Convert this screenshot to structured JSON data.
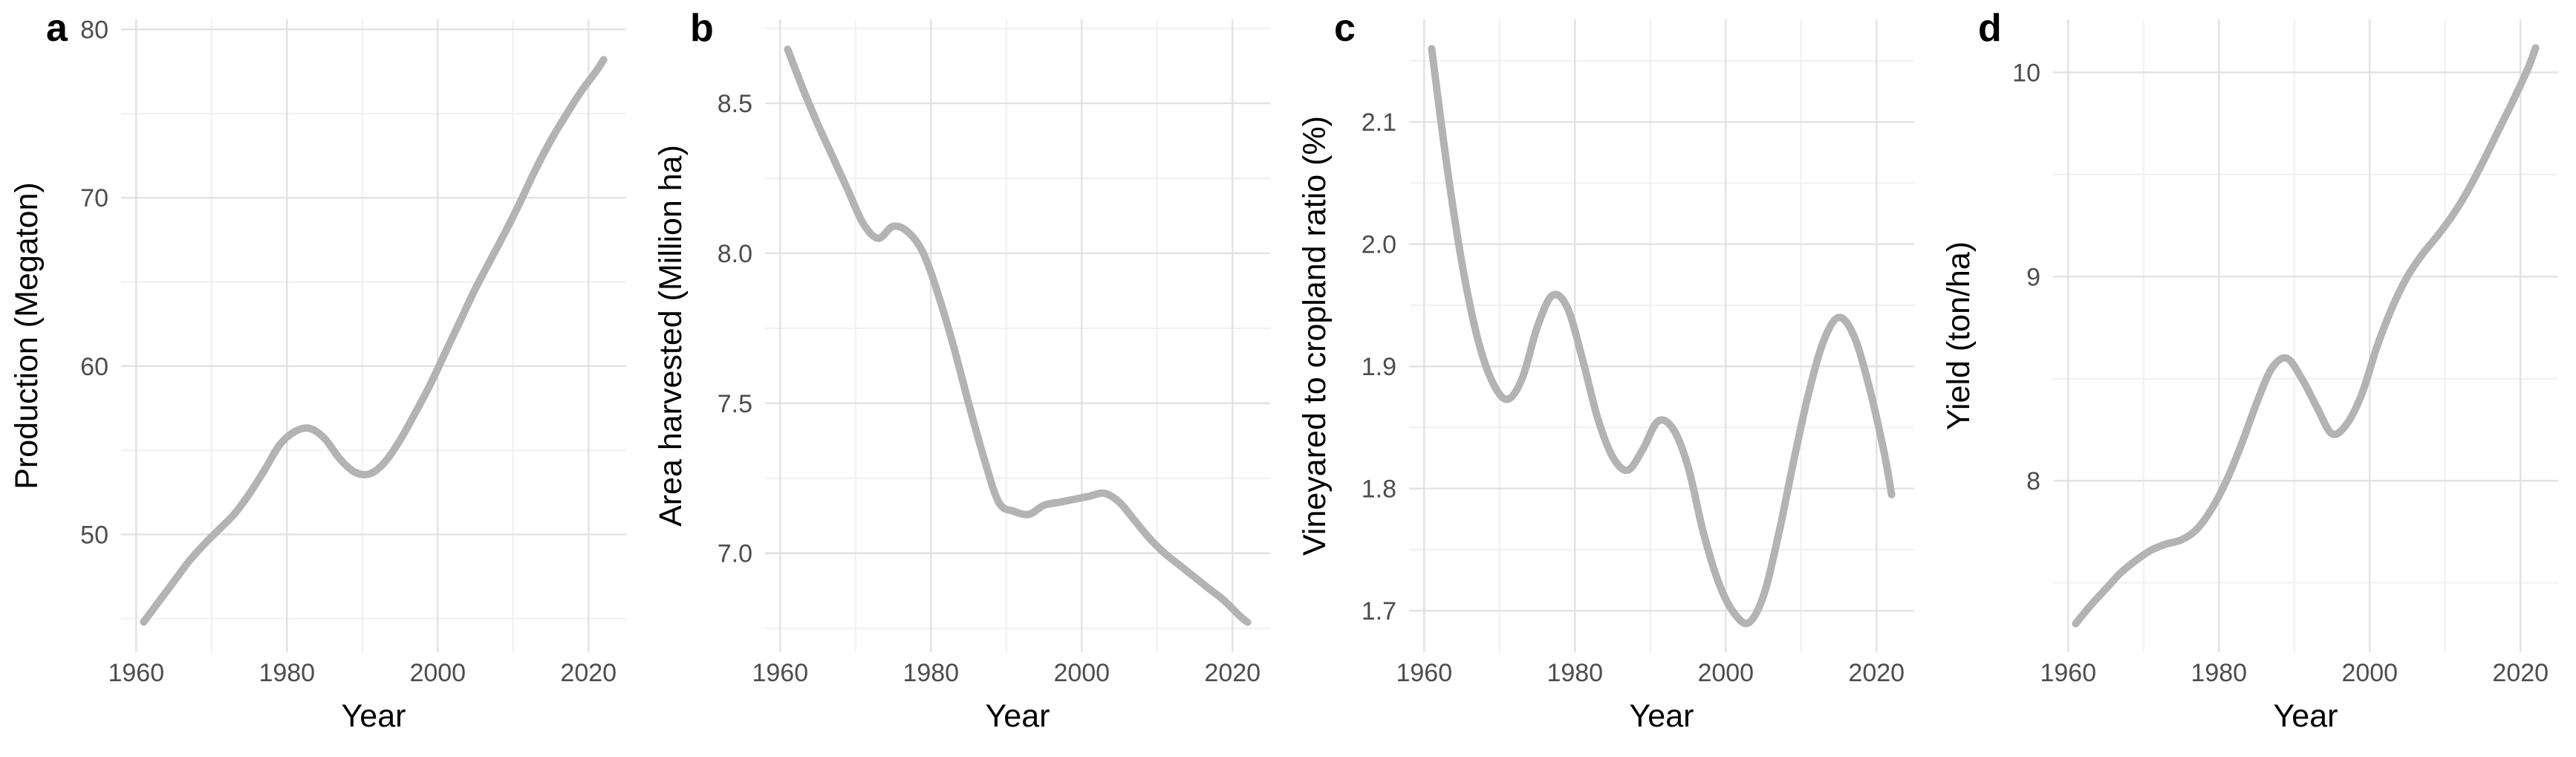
{
  "figure": {
    "description": "Four-panel time-series figure of smoothed trends versus Year",
    "panel_count": 4
  },
  "styles": {
    "background_color": "#ffffff",
    "line_color": "#b3b3b3",
    "grid_major_color": "#e2e2e2",
    "grid_minor_color": "#f0f0f0",
    "tick_label_color": "#4d4d4d",
    "axis_title_color": "#000000",
    "panel_label_color": "#000000"
  },
  "chart_data": [
    {
      "type": "line",
      "panel_label": "a",
      "title": "",
      "xlabel": "Year",
      "ylabel": "Production (Megaton)",
      "legend": "none",
      "grid": "major+minor",
      "x": [
        1961,
        1963,
        1965,
        1967,
        1969,
        1971,
        1973,
        1975,
        1977,
        1979,
        1981,
        1983,
        1985,
        1987,
        1989,
        1991,
        1993,
        1995,
        1997,
        1999,
        2001,
        2003,
        2005,
        2007,
        2009,
        2011,
        2013,
        2015,
        2017,
        2019,
        2021,
        2022
      ],
      "values": [
        44.8,
        46.0,
        47.2,
        48.4,
        49.4,
        50.3,
        51.2,
        52.4,
        53.8,
        55.3,
        56.1,
        56.3,
        55.7,
        54.5,
        53.7,
        53.6,
        54.3,
        55.6,
        57.2,
        58.9,
        60.8,
        62.7,
        64.6,
        66.3,
        68.0,
        69.8,
        71.7,
        73.4,
        74.9,
        76.3,
        77.5,
        78.2
      ],
      "xlim": [
        1958,
        2025
      ],
      "ylim": [
        43.0,
        80.6
      ],
      "x_ticks": [
        1960,
        1980,
        2000,
        2020
      ],
      "x_tick_labels": [
        "1960",
        "1980",
        "2000",
        "2020"
      ],
      "x_minor_ticks": [
        1970,
        1990,
        2010
      ],
      "y_ticks": [
        50,
        60,
        70,
        80
      ],
      "y_tick_labels": [
        "50",
        "60",
        "70",
        "80"
      ],
      "y_minor_ticks": [
        45,
        55,
        65,
        75
      ]
    },
    {
      "type": "line",
      "panel_label": "b",
      "title": "",
      "xlabel": "Year",
      "ylabel": "Area harvested (Million ha)",
      "legend": "none",
      "grid": "major+minor",
      "x": [
        1961,
        1963,
        1965,
        1967,
        1969,
        1971,
        1973,
        1975,
        1977,
        1979,
        1981,
        1983,
        1985,
        1987,
        1989,
        1991,
        1993,
        1995,
        1997,
        1999,
        2001,
        2003,
        2005,
        2007,
        2009,
        2011,
        2013,
        2015,
        2017,
        2019,
        2021,
        2022
      ],
      "values": [
        8.68,
        8.55,
        8.43,
        8.32,
        8.21,
        8.1,
        8.05,
        8.09,
        8.07,
        8.0,
        7.86,
        7.69,
        7.5,
        7.32,
        7.17,
        7.14,
        7.13,
        7.16,
        7.17,
        7.18,
        7.19,
        7.2,
        7.17,
        7.11,
        7.05,
        7.0,
        6.96,
        6.92,
        6.88,
        6.84,
        6.79,
        6.77
      ],
      "xlim": [
        1958,
        2025
      ],
      "ylim": [
        6.67,
        8.78
      ],
      "x_ticks": [
        1960,
        1980,
        2000,
        2020
      ],
      "x_tick_labels": [
        "1960",
        "1980",
        "2000",
        "2020"
      ],
      "x_minor_ticks": [
        1970,
        1990,
        2010
      ],
      "y_ticks": [
        7.0,
        7.5,
        8.0,
        8.5
      ],
      "y_tick_labels": [
        "7.0",
        "7.5",
        "8.0",
        "8.5"
      ],
      "y_minor_ticks": [
        6.75,
        7.25,
        7.75,
        8.25,
        8.75
      ]
    },
    {
      "type": "line",
      "panel_label": "c",
      "title": "",
      "xlabel": "Year",
      "ylabel": "Vineyared to cropland ratio (%)",
      "legend": "none",
      "grid": "major+minor",
      "x": [
        1961,
        1963,
        1965,
        1967,
        1969,
        1971,
        1973,
        1975,
        1977,
        1979,
        1981,
        1983,
        1985,
        1987,
        1989,
        1991,
        1993,
        1995,
        1997,
        1999,
        2001,
        2003,
        2005,
        2007,
        2009,
        2011,
        2013,
        2015,
        2017,
        2019,
        2021,
        2022
      ],
      "values": [
        2.16,
        2.065,
        1.985,
        1.925,
        1.888,
        1.873,
        1.89,
        1.932,
        1.958,
        1.948,
        1.906,
        1.858,
        1.826,
        1.815,
        1.832,
        1.855,
        1.849,
        1.818,
        1.765,
        1.724,
        1.699,
        1.69,
        1.712,
        1.762,
        1.822,
        1.878,
        1.921,
        1.94,
        1.925,
        1.884,
        1.83,
        1.795
      ],
      "xlim": [
        1958,
        2025
      ],
      "ylim": [
        1.666,
        2.184
      ],
      "x_ticks": [
        1960,
        1980,
        2000,
        2020
      ],
      "x_tick_labels": [
        "1960",
        "1980",
        "2000",
        "2020"
      ],
      "x_minor_ticks": [
        1970,
        1990,
        2010
      ],
      "y_ticks": [
        1.7,
        1.8,
        1.9,
        2.0,
        2.1
      ],
      "y_tick_labels": [
        "1.7",
        "1.8",
        "1.9",
        "2.0",
        "2.1"
      ],
      "y_minor_ticks": [
        1.75,
        1.85,
        1.95,
        2.05,
        2.15
      ]
    },
    {
      "type": "line",
      "panel_label": "d",
      "title": "",
      "xlabel": "Year",
      "ylabel": "Yield (ton/ha)",
      "legend": "none",
      "grid": "major+minor",
      "x": [
        1961,
        1963,
        1965,
        1967,
        1969,
        1971,
        1973,
        1975,
        1977,
        1979,
        1981,
        1983,
        1985,
        1987,
        1989,
        1991,
        1993,
        1995,
        1997,
        1999,
        2001,
        2003,
        2005,
        2007,
        2009,
        2011,
        2013,
        2015,
        2017,
        2019,
        2021,
        2022
      ],
      "values": [
        7.3,
        7.39,
        7.47,
        7.55,
        7.61,
        7.66,
        7.69,
        7.71,
        7.76,
        7.86,
        8.0,
        8.18,
        8.38,
        8.55,
        8.6,
        8.5,
        8.36,
        8.23,
        8.28,
        8.43,
        8.66,
        8.85,
        9.0,
        9.11,
        9.2,
        9.3,
        9.42,
        9.56,
        9.71,
        9.86,
        10.02,
        10.12
      ],
      "xlim": [
        1958,
        2025
      ],
      "ylim": [
        7.16,
        10.26
      ],
      "x_ticks": [
        1960,
        1980,
        2000,
        2020
      ],
      "x_tick_labels": [
        "1960",
        "1980",
        "2000",
        "2020"
      ],
      "x_minor_ticks": [
        1970,
        1990,
        2010
      ],
      "y_ticks": [
        8,
        9,
        10
      ],
      "y_tick_labels": [
        "8",
        "9",
        "10"
      ],
      "y_minor_ticks": [
        7.5,
        8.5,
        9.5
      ]
    }
  ]
}
